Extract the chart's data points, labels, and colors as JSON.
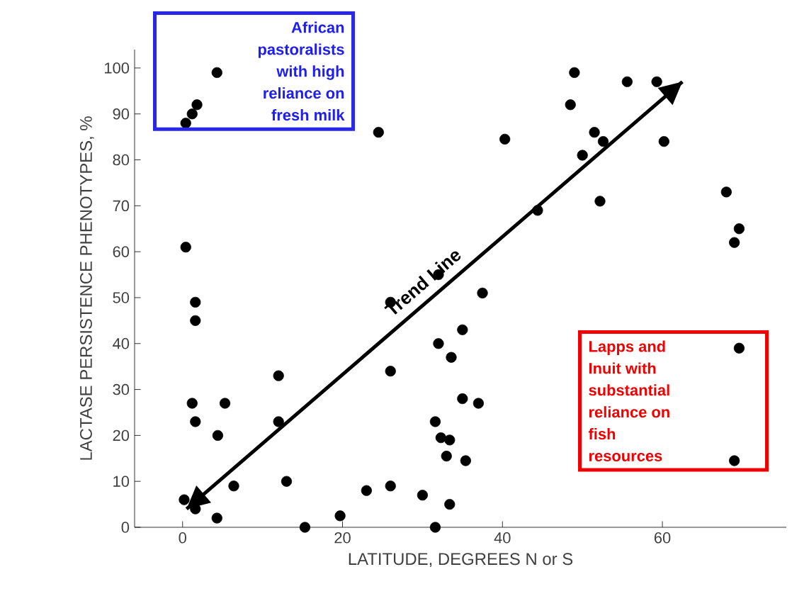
{
  "chart_data": {
    "type": "scatter",
    "xlabel": "LATITUDE, DEGREES N or S",
    "ylabel": "LACTASE PERSISTENCE PHENOTYPES, %",
    "xlim": [
      -6,
      75.5
    ],
    "xticks": [
      0,
      20,
      40,
      60
    ],
    "ylim": [
      0,
      104
    ],
    "yticks": [
      0,
      10,
      20,
      30,
      40,
      50,
      60,
      70,
      80,
      90,
      100
    ],
    "grid": false,
    "legend": false,
    "annotations": [
      "African pastoralists with high reliance on fresh milk",
      "Lapps and Inuit with substantial reliance on fish resources"
    ],
    "series": [
      {
        "marker": "circle",
        "color": "#000000",
        "x": [
          0.4,
          1.2,
          1.8,
          4.3,
          24.5,
          0.4,
          1.6,
          1.6,
          26,
          1.2,
          5.3,
          1.6,
          12,
          12,
          4.4,
          6.4,
          13,
          0.2,
          1.6,
          4.3,
          15.3,
          19.7,
          23,
          26,
          26,
          30,
          33.4,
          31.6,
          32,
          33.6,
          35,
          31.6,
          32.3,
          33.4,
          33,
          35.4,
          35,
          37,
          37.5,
          32,
          49,
          55.6,
          59.3,
          48.5,
          40.3,
          51.5,
          52.6,
          50,
          60.2,
          44.4,
          52.2,
          68,
          69.6,
          69,
          69.6,
          69
        ],
        "values": [
          88,
          90,
          92,
          99,
          86,
          61,
          49,
          45,
          49,
          27,
          27,
          23,
          33,
          23,
          20,
          9,
          10,
          6,
          4,
          2,
          0,
          2.5,
          8,
          9,
          34,
          7,
          5,
          0,
          40,
          37,
          43,
          23,
          19.5,
          19,
          15.5,
          14.5,
          28,
          27,
          51,
          55,
          99,
          97,
          97,
          92,
          84.5,
          86,
          84,
          81,
          84,
          69,
          71,
          73,
          65,
          62,
          39,
          14.5
        ]
      },
      {
        "type": "line",
        "name": "Trend Line",
        "color": "#000000",
        "line_style": "solid",
        "x": [
          0.5,
          62.5
        ],
        "values": [
          4,
          97
        ]
      }
    ]
  }
}
